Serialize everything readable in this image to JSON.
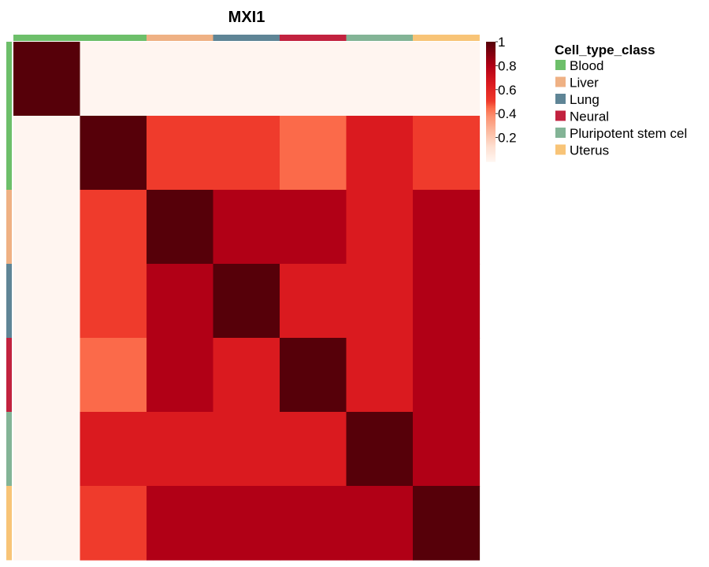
{
  "chart_data": {
    "type": "heatmap",
    "title": "MXI1",
    "group_order": [
      "Blood",
      "Blood",
      "Liver",
      "Lung",
      "Neural",
      "Pluripotent stem cel",
      "Uterus"
    ],
    "matrix": [
      [
        1.0,
        0.0,
        0.0,
        0.0,
        0.0,
        0.0,
        0.0
      ],
      [
        0.0,
        1.0,
        0.5,
        0.5,
        0.45,
        0.65,
        0.5
      ],
      [
        0.0,
        0.5,
        1.0,
        0.8,
        0.8,
        0.65,
        0.8
      ],
      [
        0.0,
        0.5,
        0.8,
        1.0,
        0.65,
        0.65,
        0.8
      ],
      [
        0.0,
        0.45,
        0.8,
        0.65,
        1.0,
        0.65,
        0.8
      ],
      [
        0.0,
        0.65,
        0.65,
        0.65,
        0.65,
        1.0,
        0.8
      ],
      [
        0.0,
        0.5,
        0.8,
        0.8,
        0.8,
        0.8,
        1.0
      ]
    ],
    "color_scale": {
      "min": 0,
      "max": 1,
      "ticks": [
        1,
        0.8,
        0.6,
        0.4,
        0.2
      ],
      "tick_labels": [
        "1",
        "0.8",
        "0.6",
        "0.4",
        "0.2"
      ],
      "stops": [
        {
          "value": 0.0,
          "color": "#FFF5F0"
        },
        {
          "value": 0.12,
          "color": "#FEE0D2"
        },
        {
          "value": 0.25,
          "color": "#FCBBA1"
        },
        {
          "value": 0.37,
          "color": "#FC9272"
        },
        {
          "value": 0.45,
          "color": "#FB6A4A"
        },
        {
          "value": 0.5,
          "color": "#EF3B2C"
        },
        {
          "value": 0.65,
          "color": "#DA1A1F"
        },
        {
          "value": 0.8,
          "color": "#B10016"
        },
        {
          "value": 1.0,
          "color": "#560009"
        }
      ]
    },
    "annotation": {
      "title": "Cell_type_class",
      "classes": [
        {
          "name": "Blood",
          "color": "#6DBF6A"
        },
        {
          "name": "Liver",
          "color": "#EFB184"
        },
        {
          "name": "Lung",
          "color": "#5F8596"
        },
        {
          "name": "Neural",
          "color": "#C2223F"
        },
        {
          "name": "Pluripotent stem cel",
          "color": "#83B496"
        },
        {
          "name": "Uterus",
          "color": "#F8C477"
        }
      ]
    }
  }
}
